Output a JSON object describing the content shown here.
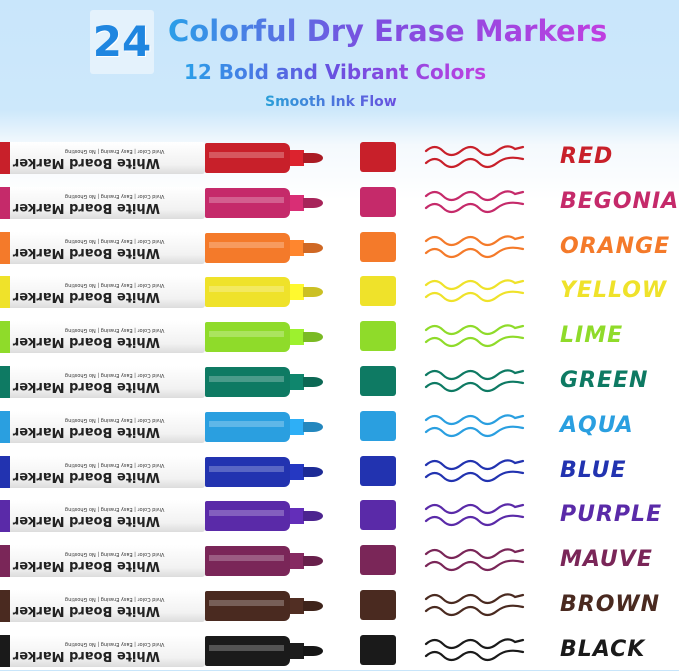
{
  "header": {
    "count": "24",
    "title": "Colorful Dry Erase Markers",
    "subtitle": "12 Bold and Vibrant Colors",
    "tagline": "Smooth Ink Flow"
  },
  "marker_label": {
    "brand": "White Board Marker",
    "features": "Vivid Color | Easy Erasing | No Ghosting"
  },
  "colors": [
    {
      "name": "RED",
      "hex": "#c8202a"
    },
    {
      "name": "BEGONIA",
      "hex": "#c52a6a"
    },
    {
      "name": "ORANGE",
      "hex": "#f47a2a"
    },
    {
      "name": "YELLOW",
      "hex": "#efe22a"
    },
    {
      "name": "LIME",
      "hex": "#8fdb2a"
    },
    {
      "name": "GREEN",
      "hex": "#0e7a63"
    },
    {
      "name": "AQUA",
      "hex": "#2a9fe0"
    },
    {
      "name": "BLUE",
      "hex": "#2233b0"
    },
    {
      "name": "PURPLE",
      "hex": "#5a2aa8"
    },
    {
      "name": "MAUVE",
      "hex": "#7a2658"
    },
    {
      "name": "BROWN",
      "hex": "#4a2a20"
    },
    {
      "name": "BLACK",
      "hex": "#1a1a1a"
    }
  ]
}
